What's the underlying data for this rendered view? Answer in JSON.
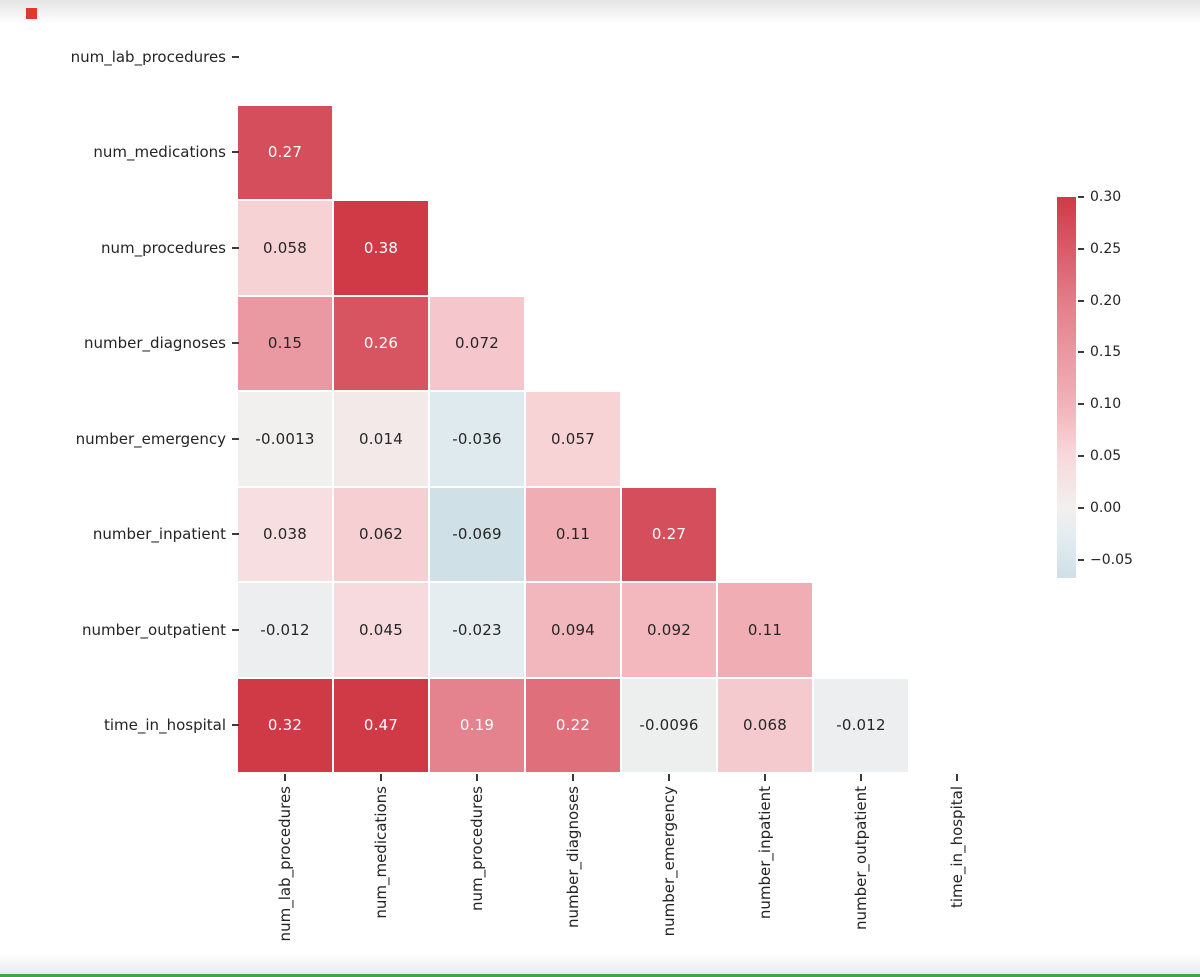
{
  "chart_data": {
    "type": "heatmap",
    "title": "",
    "description": "Lower-triangle correlation matrix heatmap with annotated coefficients",
    "variables": [
      "num_lab_procedures",
      "num_medications",
      "num_procedures",
      "number_diagnoses",
      "number_emergency",
      "number_inpatient",
      "number_outpatient",
      "time_in_hospital"
    ],
    "rows": [
      {
        "label": "num_lab_procedures",
        "cells": []
      },
      {
        "label": "num_medications",
        "cells": [
          {
            "v": 0.27,
            "t": "0.27"
          }
        ]
      },
      {
        "label": "num_procedures",
        "cells": [
          {
            "v": 0.058,
            "t": "0.058"
          },
          {
            "v": 0.38,
            "t": "0.38"
          }
        ]
      },
      {
        "label": "number_diagnoses",
        "cells": [
          {
            "v": 0.15,
            "t": "0.15"
          },
          {
            "v": 0.26,
            "t": "0.26"
          },
          {
            "v": 0.072,
            "t": "0.072"
          }
        ]
      },
      {
        "label": "number_emergency",
        "cells": [
          {
            "v": -0.0013,
            "t": "-0.0013"
          },
          {
            "v": 0.014,
            "t": "0.014"
          },
          {
            "v": -0.036,
            "t": "-0.036"
          },
          {
            "v": 0.057,
            "t": "0.057"
          }
        ]
      },
      {
        "label": "number_inpatient",
        "cells": [
          {
            "v": 0.038,
            "t": "0.038"
          },
          {
            "v": 0.062,
            "t": "0.062"
          },
          {
            "v": -0.069,
            "t": "-0.069"
          },
          {
            "v": 0.11,
            "t": "0.11"
          },
          {
            "v": 0.27,
            "t": "0.27"
          }
        ]
      },
      {
        "label": "number_outpatient",
        "cells": [
          {
            "v": -0.012,
            "t": "-0.012"
          },
          {
            "v": 0.045,
            "t": "0.045"
          },
          {
            "v": -0.023,
            "t": "-0.023"
          },
          {
            "v": 0.094,
            "t": "0.094"
          },
          {
            "v": 0.092,
            "t": "0.092"
          },
          {
            "v": 0.11,
            "t": "0.11"
          }
        ]
      },
      {
        "label": "time_in_hospital",
        "cells": [
          {
            "v": 0.32,
            "t": "0.32"
          },
          {
            "v": 0.47,
            "t": "0.47"
          },
          {
            "v": 0.19,
            "t": "0.19"
          },
          {
            "v": 0.22,
            "t": "0.22"
          },
          {
            "v": -0.0096,
            "t": "-0.0096"
          },
          {
            "v": 0.068,
            "t": "0.068"
          },
          {
            "v": -0.012,
            "t": "-0.012"
          }
        ]
      }
    ],
    "mask": "upper triangle and diagonal hidden",
    "grid": false,
    "legend_position": "colorbar-right",
    "colorbar": {
      "vmax": 0.3,
      "vmin": -0.0677,
      "tick_values": [
        0.3,
        0.25,
        0.2,
        0.15,
        0.1,
        0.05,
        0.0,
        -0.05
      ],
      "tick_labels": [
        "0.30",
        "0.25",
        "0.20",
        "0.15",
        "0.10",
        "0.05",
        "0.00",
        "−0.05"
      ]
    },
    "colormap_anchors": [
      {
        "v": 0.3,
        "c": "#d03a47"
      },
      {
        "v": 0.25,
        "c": "#d95b68"
      },
      {
        "v": 0.2,
        "c": "#e27d88"
      },
      {
        "v": 0.15,
        "c": "#ea98a1"
      },
      {
        "v": 0.1,
        "c": "#f1b2b8"
      },
      {
        "v": 0.05,
        "c": "#f8d8db"
      },
      {
        "v": 0.0,
        "c": "#f2f0ee"
      },
      {
        "v": -0.03,
        "c": "#e2ecf0"
      },
      {
        "v": -0.0677,
        "c": "#cfe0e6"
      }
    ],
    "white_text_threshold": 0.17,
    "annotation_color_dark": "#262626",
    "annotation_color_light": "#ffffff"
  },
  "page": {
    "accent_colors": {
      "bottom_line_green": "#44a248",
      "corner_marker_red": "#df382f",
      "tick_color": "#3b3b3b"
    }
  }
}
